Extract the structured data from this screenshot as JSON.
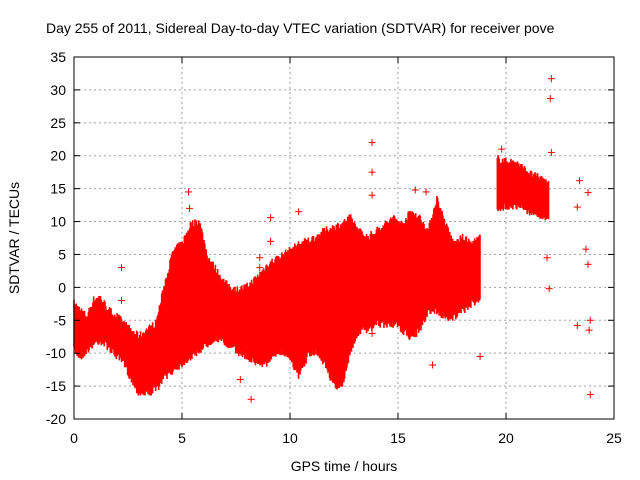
{
  "chart_data": {
    "type": "scatter",
    "title": "Day 255 of 2011, Sidereal Day-to-day VTEC variation (SDTVAR) for receiver pove",
    "xlabel": "GPS time / hours",
    "ylabel": "SDTVAR / TECUs",
    "xlim": [
      0,
      25
    ],
    "ylim": [
      -20,
      35
    ],
    "xticks": [
      0,
      5,
      10,
      15,
      20,
      25
    ],
    "yticks": [
      -20,
      -15,
      -10,
      -5,
      0,
      5,
      10,
      15,
      20,
      25,
      30,
      35
    ],
    "grid": true,
    "marker": "plus",
    "color": "#ff0000",
    "series": [
      {
        "name": "SDTVAR",
        "band": [
          {
            "x": 0.0,
            "lo": -9,
            "hi": -3
          },
          {
            "x": 0.3,
            "lo": -10,
            "hi": -4
          },
          {
            "x": 0.6,
            "lo": -9,
            "hi": -5
          },
          {
            "x": 0.9,
            "lo": -8,
            "hi": -2.5
          },
          {
            "x": 1.2,
            "lo": -7.5,
            "hi": -2
          },
          {
            "x": 1.6,
            "lo": -8.5,
            "hi": -4
          },
          {
            "x": 2.0,
            "lo": -10,
            "hi": -5
          },
          {
            "x": 2.3,
            "lo": -11,
            "hi": -6
          },
          {
            "x": 2.6,
            "lo": -13,
            "hi": -7
          },
          {
            "x": 3.0,
            "lo": -15.5,
            "hi": -8
          },
          {
            "x": 3.4,
            "lo": -15.5,
            "hi": -7
          },
          {
            "x": 3.8,
            "lo": -15,
            "hi": -6
          },
          {
            "x": 4.2,
            "lo": -13,
            "hi": 0
          },
          {
            "x": 4.6,
            "lo": -12,
            "hi": 5
          },
          {
            "x": 5.0,
            "lo": -11,
            "hi": 6
          },
          {
            "x": 5.4,
            "lo": -10,
            "hi": 9
          },
          {
            "x": 5.8,
            "lo": -9,
            "hi": 9.5
          },
          {
            "x": 6.2,
            "lo": -8,
            "hi": 4
          },
          {
            "x": 6.6,
            "lo": -7,
            "hi": 2
          },
          {
            "x": 7.0,
            "lo": -8,
            "hi": 0
          },
          {
            "x": 7.5,
            "lo": -9,
            "hi": -1
          },
          {
            "x": 8.0,
            "lo": -10,
            "hi": -0.5
          },
          {
            "x": 8.5,
            "lo": -11,
            "hi": 1
          },
          {
            "x": 9.0,
            "lo": -11,
            "hi": 3
          },
          {
            "x": 9.5,
            "lo": -9,
            "hi": 4
          },
          {
            "x": 10.0,
            "lo": -10,
            "hi": 5
          },
          {
            "x": 10.4,
            "lo": -13,
            "hi": 6
          },
          {
            "x": 10.8,
            "lo": -10,
            "hi": 6.5
          },
          {
            "x": 11.2,
            "lo": -9,
            "hi": 7
          },
          {
            "x": 11.6,
            "lo": -11,
            "hi": 8
          },
          {
            "x": 12.0,
            "lo": -14,
            "hi": 8.5
          },
          {
            "x": 12.4,
            "lo": -15,
            "hi": 9
          },
          {
            "x": 12.8,
            "lo": -9,
            "hi": 10
          },
          {
            "x": 13.2,
            "lo": -6,
            "hi": 8
          },
          {
            "x": 13.6,
            "lo": -6,
            "hi": 7
          },
          {
            "x": 14.0,
            "lo": -5,
            "hi": 8
          },
          {
            "x": 14.4,
            "lo": -5,
            "hi": 9
          },
          {
            "x": 14.8,
            "lo": -5,
            "hi": 10
          },
          {
            "x": 15.2,
            "lo": -6,
            "hi": 9
          },
          {
            "x": 15.6,
            "lo": -7,
            "hi": 11
          },
          {
            "x": 16.0,
            "lo": -6,
            "hi": 10
          },
          {
            "x": 16.4,
            "lo": -3,
            "hi": 8
          },
          {
            "x": 16.8,
            "lo": -3,
            "hi": 13
          },
          {
            "x": 17.2,
            "lo": -4,
            "hi": 9
          },
          {
            "x": 17.6,
            "lo": -4,
            "hi": 6
          },
          {
            "x": 18.0,
            "lo": -3,
            "hi": 7
          },
          {
            "x": 18.4,
            "lo": -2,
            "hi": 6
          },
          {
            "x": 18.8,
            "lo": -1,
            "hi": 7
          }
        ],
        "band2": [
          {
            "x": 19.6,
            "lo": 12,
            "hi": 19
          },
          {
            "x": 20.0,
            "lo": 13,
            "hi": 18.5
          },
          {
            "x": 20.4,
            "lo": 13,
            "hi": 18.5
          },
          {
            "x": 20.8,
            "lo": 12.5,
            "hi": 17.5
          },
          {
            "x": 21.2,
            "lo": 12,
            "hi": 16.5
          },
          {
            "x": 21.6,
            "lo": 11.5,
            "hi": 16
          },
          {
            "x": 22.0,
            "lo": 11,
            "hi": 15.5
          }
        ],
        "points": [
          {
            "x": 2.2,
            "y": 3
          },
          {
            "x": 2.2,
            "y": -2
          },
          {
            "x": 5.3,
            "y": 14.5
          },
          {
            "x": 5.35,
            "y": 12
          },
          {
            "x": 8.2,
            "y": -17
          },
          {
            "x": 7.7,
            "y": -14
          },
          {
            "x": 8.6,
            "y": 4.5
          },
          {
            "x": 8.6,
            "y": 3
          },
          {
            "x": 9.1,
            "y": 7
          },
          {
            "x": 9.1,
            "y": 10.6
          },
          {
            "x": 10.4,
            "y": 11.5
          },
          {
            "x": 13.8,
            "y": 22
          },
          {
            "x": 13.8,
            "y": 17.5
          },
          {
            "x": 13.8,
            "y": 14
          },
          {
            "x": 13.8,
            "y": -7
          },
          {
            "x": 15.8,
            "y": 14.8
          },
          {
            "x": 16.3,
            "y": 14.5
          },
          {
            "x": 16.6,
            "y": -11.8
          },
          {
            "x": 18.8,
            "y": -10.5
          },
          {
            "x": 19.8,
            "y": 21
          },
          {
            "x": 22.1,
            "y": 31.7
          },
          {
            "x": 22.05,
            "y": 28.7
          },
          {
            "x": 22.1,
            "y": 20.5
          },
          {
            "x": 21.9,
            "y": 4.5
          },
          {
            "x": 22.0,
            "y": -0.2
          },
          {
            "x": 23.4,
            "y": 16.2
          },
          {
            "x": 23.3,
            "y": 12.2
          },
          {
            "x": 23.3,
            "y": -5.8
          },
          {
            "x": 23.8,
            "y": 14.4
          },
          {
            "x": 23.7,
            "y": 5.8
          },
          {
            "x": 23.8,
            "y": 3.5
          },
          {
            "x": 23.9,
            "y": -5
          },
          {
            "x": 23.85,
            "y": -6.5
          },
          {
            "x": 23.9,
            "y": -16.3
          }
        ]
      }
    ]
  }
}
